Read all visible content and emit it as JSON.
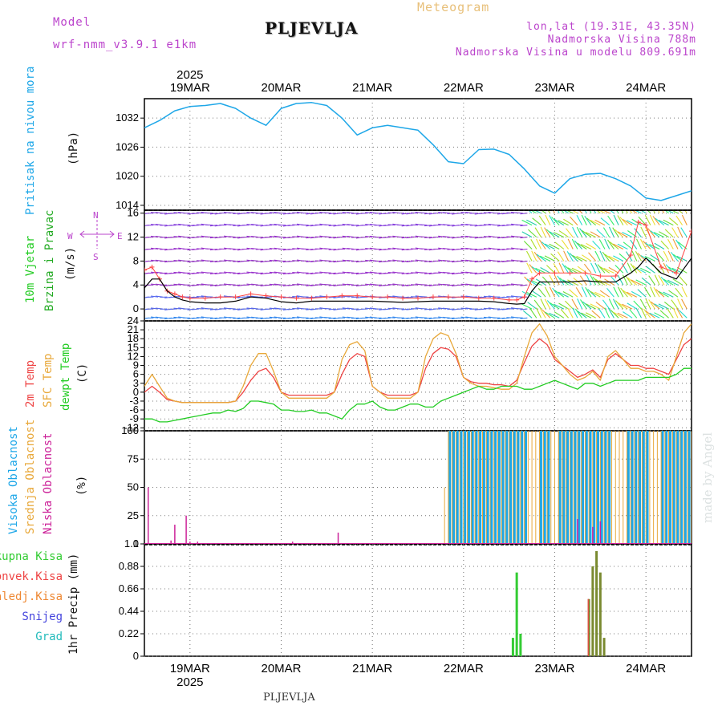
{
  "header": {
    "model_label": "Model",
    "model_name": "wrf-nmm_v3.9.1 e1km",
    "station": "PLJEVLJA",
    "meteogram": "Meteogram",
    "coords": "lon,lat (19.31E, 43.35N)",
    "altitude": "Nadmorska Visina 788m",
    "model_altitude": "Nadmorska Visina u modelu 809.691m",
    "watermark": "made by Angel",
    "footer_station": "PLJEVLJA"
  },
  "time_axis": {
    "days": [
      "19MAR",
      "20MAR",
      "21MAR",
      "22MAR",
      "23MAR",
      "24MAR"
    ],
    "year": "2025",
    "range_hours": [
      -12,
      132
    ]
  },
  "colors": {
    "pressure": "#1ea7e8",
    "temp2m": "#ee4444",
    "sfc_temp": "#e8a83a",
    "dewpoint": "#22cc22",
    "high_cloud": "#1ea7e8",
    "mid_cloud": "#e8a83a",
    "low_cloud": "#cc2299",
    "total_precip": "#33cc33",
    "conv_precip": "#ee4444",
    "frozen_precip": "#ee8833",
    "snow": "#4444dd",
    "hail": "#22bbbb",
    "wind_speed": "#000000",
    "gust": "#ff4444",
    "wind_label": "#22cc22",
    "wind_label2": "#22aa22",
    "direction_compass": "#bb44cc"
  },
  "panel_labels": {
    "pressure": [
      "Pritisak na nivou mora",
      "(hPa)"
    ],
    "wind": [
      "10m Vjetar",
      "Brzina i Pravac",
      "(m/s)"
    ],
    "compass": {
      "n": "N",
      "s": "S",
      "e": "E",
      "w": "W"
    },
    "temp": [
      "2m Temp",
      "SFC Temp",
      "dewpt Temp",
      "(C)"
    ],
    "cloud": [
      "Visoka Oblacnost",
      "Srednja Oblacnost",
      "Niska Oblacnost",
      "(%)"
    ],
    "precip_legend": [
      "Ukupna Kisa",
      "Konvek.Kisa",
      "Zaledj.Kisa",
      "Snijeg",
      "Grad"
    ],
    "precip_axis": "1hr Precip (mm)"
  },
  "chart_data": [
    {
      "type": "line",
      "name": "pressure",
      "ylim": [
        1013,
        1036
      ],
      "yticks": [
        "1014",
        "1020",
        "1026",
        "1032"
      ],
      "ytick_values": [
        1014,
        1020,
        1026,
        1032
      ],
      "x": [
        -12,
        -8,
        -4,
        0,
        4,
        8,
        12,
        16,
        20,
        24,
        28,
        32,
        36,
        40,
        44,
        48,
        52,
        56,
        60,
        64,
        68,
        72,
        76,
        80,
        84,
        88,
        92,
        96,
        100,
        104,
        108,
        112,
        116,
        120,
        124,
        128,
        132
      ],
      "values": [
        1030,
        1031.5,
        1033.5,
        1034.4,
        1034.6,
        1035,
        1034,
        1032,
        1030.5,
        1034,
        1035,
        1035.2,
        1034.6,
        1032,
        1028.5,
        1030,
        1030.5,
        1030,
        1029.5,
        1026.5,
        1023,
        1022.6,
        1025.5,
        1025.6,
        1024.5,
        1021.5,
        1018,
        1016.5,
        1019.5,
        1020.4,
        1020.6,
        1019.5,
        1018,
        1015.5,
        1015,
        1016,
        1017
      ]
    },
    {
      "type": "line",
      "name": "wind",
      "ylim": [
        -2,
        16.5
      ],
      "yticks": [
        "0",
        "4",
        "8",
        "12",
        "16"
      ],
      "ytick_values": [
        0,
        4,
        8,
        12,
        16
      ],
      "x": [
        -12,
        -10,
        -8,
        -6,
        -4,
        -2,
        0,
        4,
        8,
        12,
        16,
        20,
        24,
        28,
        32,
        36,
        40,
        44,
        48,
        52,
        56,
        60,
        64,
        68,
        72,
        76,
        80,
        84,
        86,
        88,
        90,
        92,
        96,
        100,
        104,
        108,
        112,
        116,
        118,
        120,
        124,
        128,
        132
      ],
      "speed": [
        3.5,
        5,
        5,
        3,
        2,
        1.5,
        1.2,
        1,
        1,
        1.3,
        2,
        1.8,
        1.2,
        1,
        1.3,
        1.3,
        1.3,
        1.3,
        1.3,
        1.2,
        1.1,
        1.2,
        1.3,
        1.3,
        1.3,
        1.3,
        1.2,
        0.9,
        0.8,
        0.9,
        3,
        4.5,
        4.5,
        4.5,
        4.7,
        4.5,
        4.5,
        6,
        7,
        8.5,
        6,
        5,
        8.5
      ],
      "gust": [
        6.5,
        7,
        5,
        3,
        2.5,
        2,
        1.8,
        1.8,
        2,
        2,
        2.5,
        2.2,
        2,
        1.8,
        1.8,
        2,
        2.2,
        2.2,
        2,
        2,
        1.8,
        1.8,
        2,
        2,
        2,
        1.8,
        1.8,
        1.5,
        1.5,
        2,
        5,
        6,
        6,
        6,
        6,
        5.5,
        5.5,
        9,
        14.5,
        14,
        7,
        6,
        13
      ]
    },
    {
      "type": "line",
      "name": "temperature",
      "ylim": [
        -13,
        24
      ],
      "yticks": [
        "-12",
        "-9",
        "-6",
        "-3",
        "0",
        "3",
        "6",
        "9",
        "12",
        "15",
        "18",
        "21",
        "24"
      ],
      "ytick_values": [
        -12,
        -9,
        -6,
        -3,
        0,
        3,
        6,
        9,
        12,
        15,
        18,
        21,
        24
      ],
      "x": [
        -12,
        -10,
        -8,
        -6,
        -4,
        -2,
        0,
        2,
        4,
        6,
        8,
        10,
        12,
        14,
        16,
        18,
        20,
        22,
        24,
        26,
        28,
        30,
        32,
        34,
        36,
        38,
        40,
        42,
        44,
        46,
        48,
        50,
        52,
        54,
        56,
        58,
        60,
        62,
        64,
        66,
        68,
        70,
        72,
        74,
        76,
        78,
        80,
        82,
        84,
        86,
        88,
        90,
        92,
        94,
        96,
        98,
        100,
        102,
        104,
        106,
        108,
        110,
        112,
        114,
        116,
        118,
        120,
        122,
        124,
        126,
        128,
        130,
        132
      ],
      "series": [
        {
          "name": "2m Temp",
          "values": [
            0,
            2,
            0,
            -2.5,
            -3,
            -3.5,
            -3.5,
            -3.5,
            -3.5,
            -3.5,
            -3.5,
            -3.5,
            -3,
            0,
            4,
            7,
            8,
            5,
            0,
            -1,
            -1,
            -1,
            -1,
            -1,
            -1,
            0,
            6,
            11,
            13,
            12,
            2,
            0,
            -1,
            -1,
            -1,
            -1,
            0,
            8,
            13,
            15,
            14.5,
            12,
            5,
            3.5,
            3,
            3,
            2.5,
            2.5,
            2,
            4,
            10,
            15.5,
            18,
            16,
            11,
            9,
            7,
            5,
            6,
            7.5,
            5,
            11,
            13,
            11,
            9,
            9,
            8,
            8,
            7,
            6,
            11,
            16,
            18
          ]
        },
        {
          "name": "SFC Temp",
          "values": [
            2,
            6,
            2,
            -2,
            -3,
            -3.5,
            -3.5,
            -3.5,
            -3.5,
            -3.5,
            -3.5,
            -3.5,
            -3,
            2,
            9,
            13,
            13,
            7,
            0,
            -2,
            -2,
            -2,
            -2,
            -2,
            -2,
            0,
            11,
            16,
            17,
            14,
            2,
            0,
            -2,
            -2,
            -2,
            -2,
            0,
            12,
            18,
            20,
            19,
            13,
            5,
            3,
            2,
            2,
            1.5,
            1,
            1,
            3,
            12,
            20,
            23,
            19,
            12,
            9,
            6,
            4,
            5,
            7,
            4,
            12,
            14,
            11,
            8,
            8,
            7,
            7,
            6,
            4,
            12,
            20,
            23
          ]
        },
        {
          "name": "dewpt Temp",
          "values": [
            -9,
            -9,
            -10,
            -10,
            -9.5,
            -9,
            -8.5,
            -8,
            -7.5,
            -7,
            -7,
            -6,
            -6.5,
            -5.5,
            -3,
            -3,
            -3.5,
            -4,
            -6,
            -6,
            -6.5,
            -6.5,
            -6,
            -7,
            -7,
            -8,
            -9,
            -6,
            -4,
            -4,
            -3,
            -5,
            -6,
            -6,
            -5,
            -4,
            -4,
            -5,
            -5,
            -3,
            -2,
            -1,
            0,
            1,
            2,
            1,
            1,
            2,
            2,
            2,
            1,
            1,
            2,
            3,
            4,
            3,
            2,
            1,
            3,
            3,
            2,
            3,
            4,
            4,
            4,
            4,
            5,
            5,
            5,
            5,
            6,
            8,
            8
          ]
        }
      ]
    },
    {
      "type": "bar",
      "name": "cloud_cover",
      "ylim": [
        0,
        100
      ],
      "yticks": [
        "0",
        "25",
        "50",
        "75",
        "100"
      ],
      "ytick_values": [
        0,
        25,
        50,
        75,
        100
      ],
      "overcast_range": [
        68,
        132
      ],
      "overcast_gaps": [
        [
          89,
          91
        ],
        [
          95,
          96
        ],
        [
          111,
          114
        ],
        [
          121,
          123
        ]
      ],
      "low_bars": [
        {
          "x": -11,
          "v": 50
        },
        {
          "x": -5,
          "v": 3
        },
        {
          "x": -4,
          "v": 17
        },
        {
          "x": -1,
          "v": 25
        },
        {
          "x": 0,
          "v": 2
        },
        {
          "x": 2,
          "v": 2
        },
        {
          "x": 27,
          "v": 2
        },
        {
          "x": 39,
          "v": 10
        },
        {
          "x": 102,
          "v": 22
        },
        {
          "x": 106,
          "v": 15
        },
        {
          "x": 108,
          "v": 20
        }
      ]
    },
    {
      "type": "bar",
      "name": "precipitation",
      "ylim": [
        0,
        1.1
      ],
      "yticks": [
        "0",
        "0.22",
        "0.44",
        "0.66",
        "0.88",
        "1.1"
      ],
      "ytick_values": [
        0,
        0.22,
        0.44,
        0.66,
        0.88,
        1.1
      ],
      "series": [
        {
          "name": "Ukupna Kisa",
          "x": [
            85,
            86,
            87
          ],
          "values": [
            0.18,
            0.82,
            0.22
          ]
        },
        {
          "name": "Konvek.Kisa",
          "x": [
            105,
            106,
            107,
            108,
            109,
            110
          ],
          "values": [
            0.56,
            0.88,
            1.03,
            0.82,
            0.18,
            0.0
          ]
        }
      ]
    }
  ]
}
